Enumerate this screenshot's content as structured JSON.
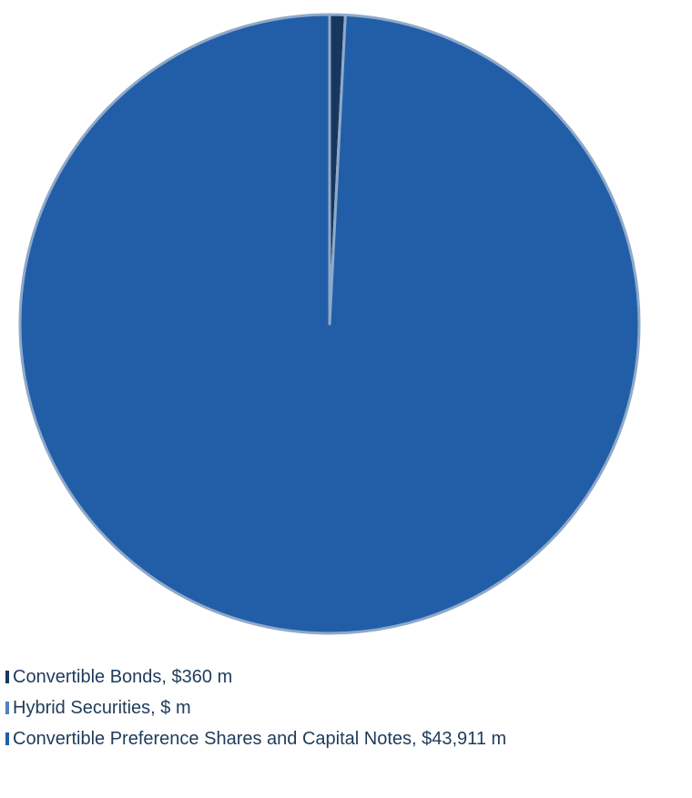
{
  "chart_data": {
    "type": "pie",
    "slices": [
      {
        "label": "Convertible Bonds, $360 m",
        "value": 360,
        "color": "#17375e"
      },
      {
        "label": "Hybrid Securities, $ m",
        "value": 0,
        "color": "#4f81bd"
      },
      {
        "label": "Convertible Preference Shares and Capital Notes, $43,911 m",
        "value": 43911,
        "color": "#225ea8"
      }
    ],
    "slice_border_color": "#8ea9c9",
    "legend_position": "bottom-left",
    "start_angle_deg": 0,
    "direction": "clockwise"
  }
}
